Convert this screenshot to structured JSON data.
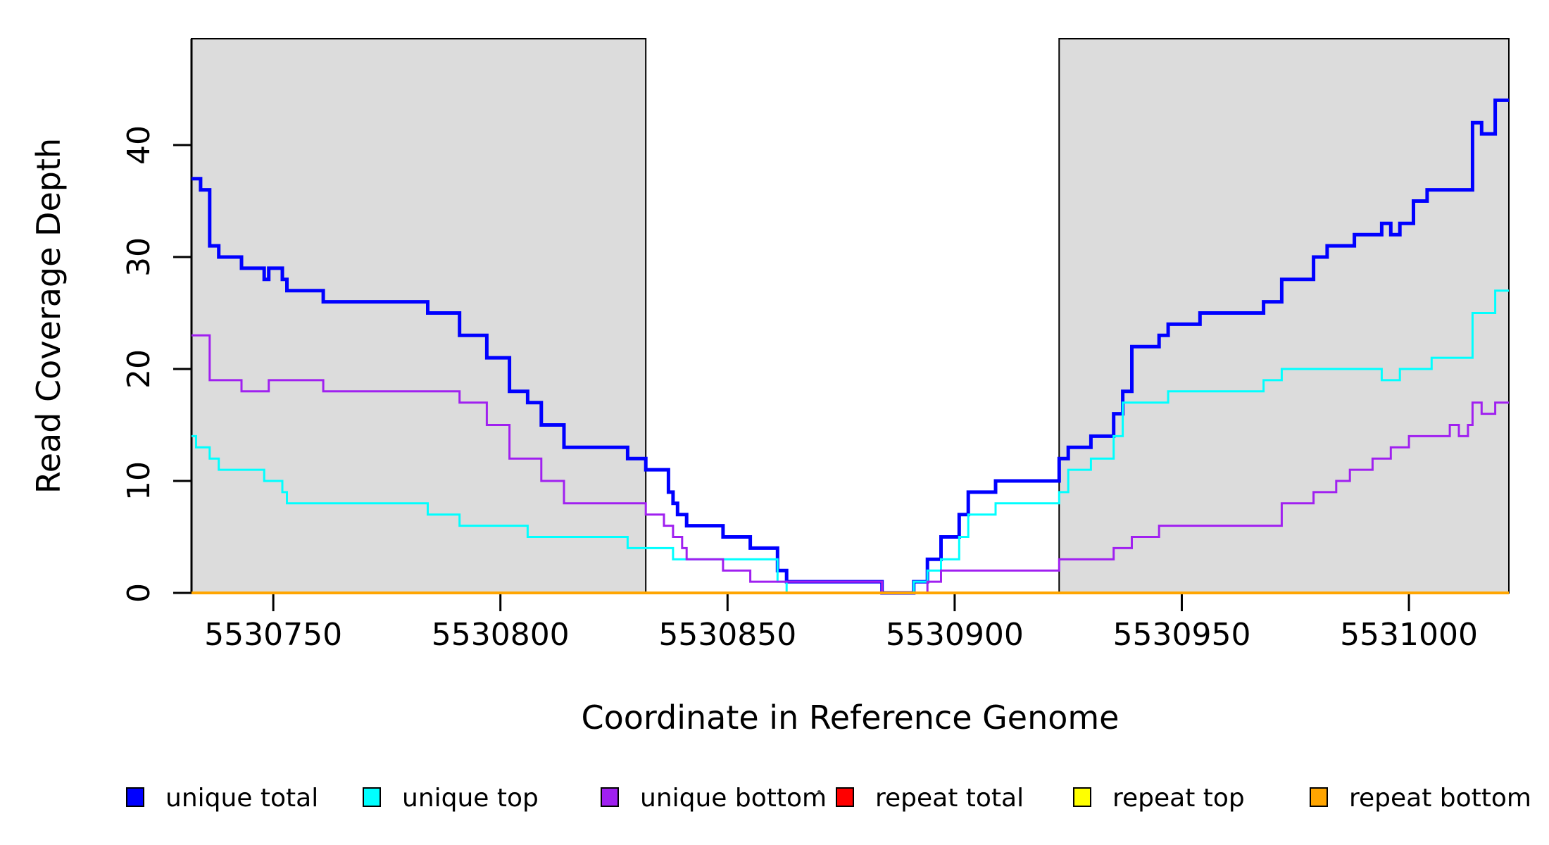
{
  "figure": {
    "xlabel": "Coordinate in Reference Genome",
    "ylabel": "Read Coverage Depth"
  },
  "chart_data": {
    "type": "line",
    "step_mode": "step-after",
    "title": "",
    "xlabel": "Coordinate in Reference Genome",
    "ylabel": "Read Coverage Depth",
    "xlim": [
      5530732,
      5531022
    ],
    "ylim": [
      0,
      49.5
    ],
    "x_ticks": [
      5530750,
      5530800,
      5530850,
      5530900,
      5530950,
      5531000
    ],
    "y_ticks": [
      0,
      10,
      20,
      30,
      40
    ],
    "grid": false,
    "legend_position": "bottom",
    "background_color": "#ffffff",
    "shaded_regions": [
      {
        "name": "repeat-region-left",
        "x0": 5530732,
        "x1": 5530832,
        "color": "#dcdcdc",
        "border": "#000000"
      },
      {
        "name": "repeat-region-right",
        "x0": 5530923,
        "x1": 5531022,
        "color": "#dcdcdc",
        "border": "#000000"
      }
    ],
    "x_end": 5531022,
    "series": [
      {
        "name": "unique total",
        "color": "#0000ff",
        "width": 5,
        "points": [
          [
            5530732,
            37
          ],
          [
            5530734,
            36
          ],
          [
            5530736,
            31
          ],
          [
            5530738,
            30
          ],
          [
            5530743,
            29
          ],
          [
            5530748,
            28
          ],
          [
            5530749,
            29
          ],
          [
            5530752,
            28
          ],
          [
            5530753,
            27
          ],
          [
            5530761,
            26
          ],
          [
            5530784,
            25
          ],
          [
            5530791,
            23
          ],
          [
            5530797,
            21
          ],
          [
            5530802,
            18
          ],
          [
            5530806,
            17
          ],
          [
            5530809,
            15
          ],
          [
            5530814,
            13
          ],
          [
            5530828,
            12
          ],
          [
            5530832,
            11
          ],
          [
            5530837,
            9
          ],
          [
            5530838,
            8
          ],
          [
            5530839,
            7
          ],
          [
            5530841,
            6
          ],
          [
            5530849,
            5
          ],
          [
            5530855,
            4
          ],
          [
            5530861,
            2
          ],
          [
            5530863,
            1
          ],
          [
            5530884,
            0
          ],
          [
            5530891,
            1
          ],
          [
            5530894,
            3
          ],
          [
            5530897,
            5
          ],
          [
            5530901,
            7
          ],
          [
            5530903,
            9
          ],
          [
            5530909,
            10
          ],
          [
            5530923,
            12
          ],
          [
            5530925,
            13
          ],
          [
            5530930,
            14
          ],
          [
            5530935,
            16
          ],
          [
            5530937,
            18
          ],
          [
            5530939,
            22
          ],
          [
            5530945,
            23
          ],
          [
            5530947,
            24
          ],
          [
            5530954,
            25
          ],
          [
            5530968,
            26
          ],
          [
            5530972,
            28
          ],
          [
            5530979,
            30
          ],
          [
            5530982,
            31
          ],
          [
            5530988,
            32
          ],
          [
            5530994,
            33
          ],
          [
            5530996,
            32
          ],
          [
            5530998,
            33
          ],
          [
            5531001,
            35
          ],
          [
            5531004,
            36
          ],
          [
            5531014,
            42
          ],
          [
            5531016,
            41
          ],
          [
            5531019,
            44
          ]
        ]
      },
      {
        "name": "unique top",
        "color": "#00ffff",
        "width": 3,
        "points": [
          [
            5530732,
            14
          ],
          [
            5530733,
            13
          ],
          [
            5530736,
            12
          ],
          [
            5530738,
            11
          ],
          [
            5530748,
            10
          ],
          [
            5530752,
            9
          ],
          [
            5530753,
            8
          ],
          [
            5530784,
            7
          ],
          [
            5530791,
            6
          ],
          [
            5530806,
            5
          ],
          [
            5530828,
            4
          ],
          [
            5530838,
            3
          ],
          [
            5530861,
            1
          ],
          [
            5530863,
            0
          ],
          [
            5530891,
            1
          ],
          [
            5530894,
            2
          ],
          [
            5530897,
            3
          ],
          [
            5530901,
            5
          ],
          [
            5530903,
            7
          ],
          [
            5530909,
            8
          ],
          [
            5530923,
            9
          ],
          [
            5530925,
            11
          ],
          [
            5530930,
            12
          ],
          [
            5530935,
            14
          ],
          [
            5530937,
            17
          ],
          [
            5530947,
            18
          ],
          [
            5530968,
            19
          ],
          [
            5530972,
            20
          ],
          [
            5530994,
            19
          ],
          [
            5530998,
            20
          ],
          [
            5531005,
            21
          ],
          [
            5531014,
            25
          ],
          [
            5531019,
            27
          ]
        ]
      },
      {
        "name": "unique bottom",
        "color": "#a020f0",
        "width": 3,
        "points": [
          [
            5530732,
            23
          ],
          [
            5530736,
            19
          ],
          [
            5530743,
            18
          ],
          [
            5530749,
            19
          ],
          [
            5530761,
            18
          ],
          [
            5530791,
            17
          ],
          [
            5530797,
            15
          ],
          [
            5530802,
            12
          ],
          [
            5530809,
            10
          ],
          [
            5530814,
            8
          ],
          [
            5530832,
            7
          ],
          [
            5530836,
            6
          ],
          [
            5530838,
            5
          ],
          [
            5530840,
            4
          ],
          [
            5530841,
            3
          ],
          [
            5530849,
            2
          ],
          [
            5530855,
            1
          ],
          [
            5530884,
            0
          ],
          [
            5530894,
            1
          ],
          [
            5530897,
            2
          ],
          [
            5530923,
            3
          ],
          [
            5530935,
            4
          ],
          [
            5530939,
            5
          ],
          [
            5530945,
            6
          ],
          [
            5530972,
            8
          ],
          [
            5530979,
            9
          ],
          [
            5530984,
            10
          ],
          [
            5530987,
            11
          ],
          [
            5530992,
            12
          ],
          [
            5530996,
            13
          ],
          [
            5531000,
            14
          ],
          [
            5531009,
            15
          ],
          [
            5531011,
            14
          ],
          [
            5531013,
            15
          ],
          [
            5531014,
            17
          ],
          [
            5531016,
            16
          ],
          [
            5531019,
            17
          ]
        ]
      },
      {
        "name": "repeat total",
        "color": "#ff0000",
        "width": 3,
        "points": [
          [
            5530732,
            0
          ]
        ]
      },
      {
        "name": "repeat top",
        "color": "#ffff00",
        "width": 3,
        "points": [
          [
            5530732,
            0
          ]
        ]
      },
      {
        "name": "repeat bottom",
        "color": "#ffa500",
        "width": 4,
        "points": [
          [
            5530732,
            0
          ]
        ]
      }
    ]
  },
  "legend": {
    "items": [
      {
        "label": "unique total",
        "color": "#0000ff"
      },
      {
        "label": "unique top",
        "color": "#00ffff"
      },
      {
        "label": "unique bottom",
        "color": "#a020f0"
      },
      {
        "label": "repeat total",
        "color": "#ff0000"
      },
      {
        "label": "repeat top",
        "color": "#ffff00"
      },
      {
        "label": "repeat bottom",
        "color": "#ffa500"
      }
    ]
  }
}
